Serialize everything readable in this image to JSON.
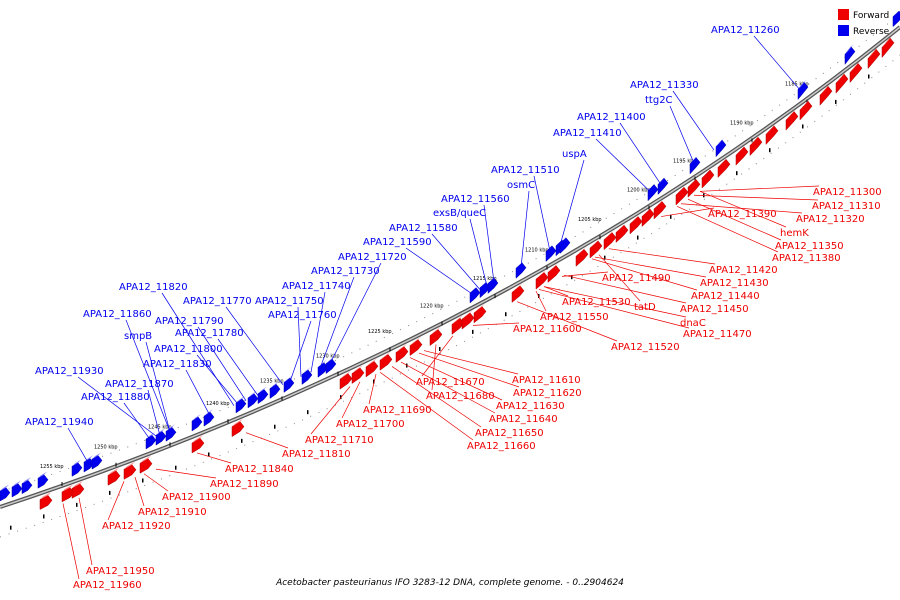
{
  "legend": {
    "forward": "Forward",
    "reverse": "Reverse"
  },
  "colors": {
    "forward": "#ee0000",
    "reverse": "#0000ee",
    "axis": "#777777"
  },
  "caption": "Acetobacter pasteurianus IFO 3283-12 DNA, complete genome. - 0..2904624",
  "scale_labels": [
    "1185 kbp",
    "1190 kbp",
    "1195 kbp",
    "1200 kbp",
    "1205 kbp",
    "1210 kbp",
    "1215 kbp",
    "1220 kbp",
    "1225 kbp",
    "1230 kbp",
    "1235 kbp",
    "1240 kbp",
    "1245 kbp",
    "1250 kbp",
    "1255 kbp"
  ],
  "reverse_genes": [
    "APA12_11260",
    "APA12_11330",
    "ttg2C",
    "APA12_11400",
    "APA12_11410",
    "uspA",
    "APA12_11510",
    "osmC",
    "APA12_11560",
    "exsB/queC",
    "APA12_11580",
    "APA12_11590",
    "APA12_11720",
    "APA12_11730",
    "APA12_11740",
    "APA12_11750",
    "APA12_11760",
    "APA12_11770",
    "APA12_11820",
    "APA12_11790",
    "APA12_11780",
    "APA12_11860",
    "smpB",
    "APA12_11800",
    "APA12_11830",
    "APA12_11930",
    "APA12_11870",
    "APA12_11880",
    "APA12_11940"
  ],
  "forward_genes": [
    "APA12_11300",
    "APA12_11310",
    "APA12_11320",
    "hemK",
    "APA12_11350",
    "APA12_11380",
    "APA12_11390",
    "APA12_11420",
    "APA12_11430",
    "APA12_11440",
    "APA12_11450",
    "APA12_11470",
    "dnaC",
    "tatD",
    "APA12_11490",
    "APA12_11530",
    "APA12_11550",
    "APA12_11520",
    "APA12_11600",
    "APA12_11610",
    "APA12_11620",
    "APA12_11630",
    "APA12_11640",
    "APA12_11650",
    "APA12_11660",
    "APA12_11670",
    "APA12_11680",
    "APA12_11690",
    "APA12_11700",
    "APA12_11710",
    "APA12_11810",
    "APA12_11840",
    "APA12_11890",
    "APA12_11900",
    "APA12_11910",
    "APA12_11920",
    "APA12_11950",
    "APA12_11960"
  ]
}
